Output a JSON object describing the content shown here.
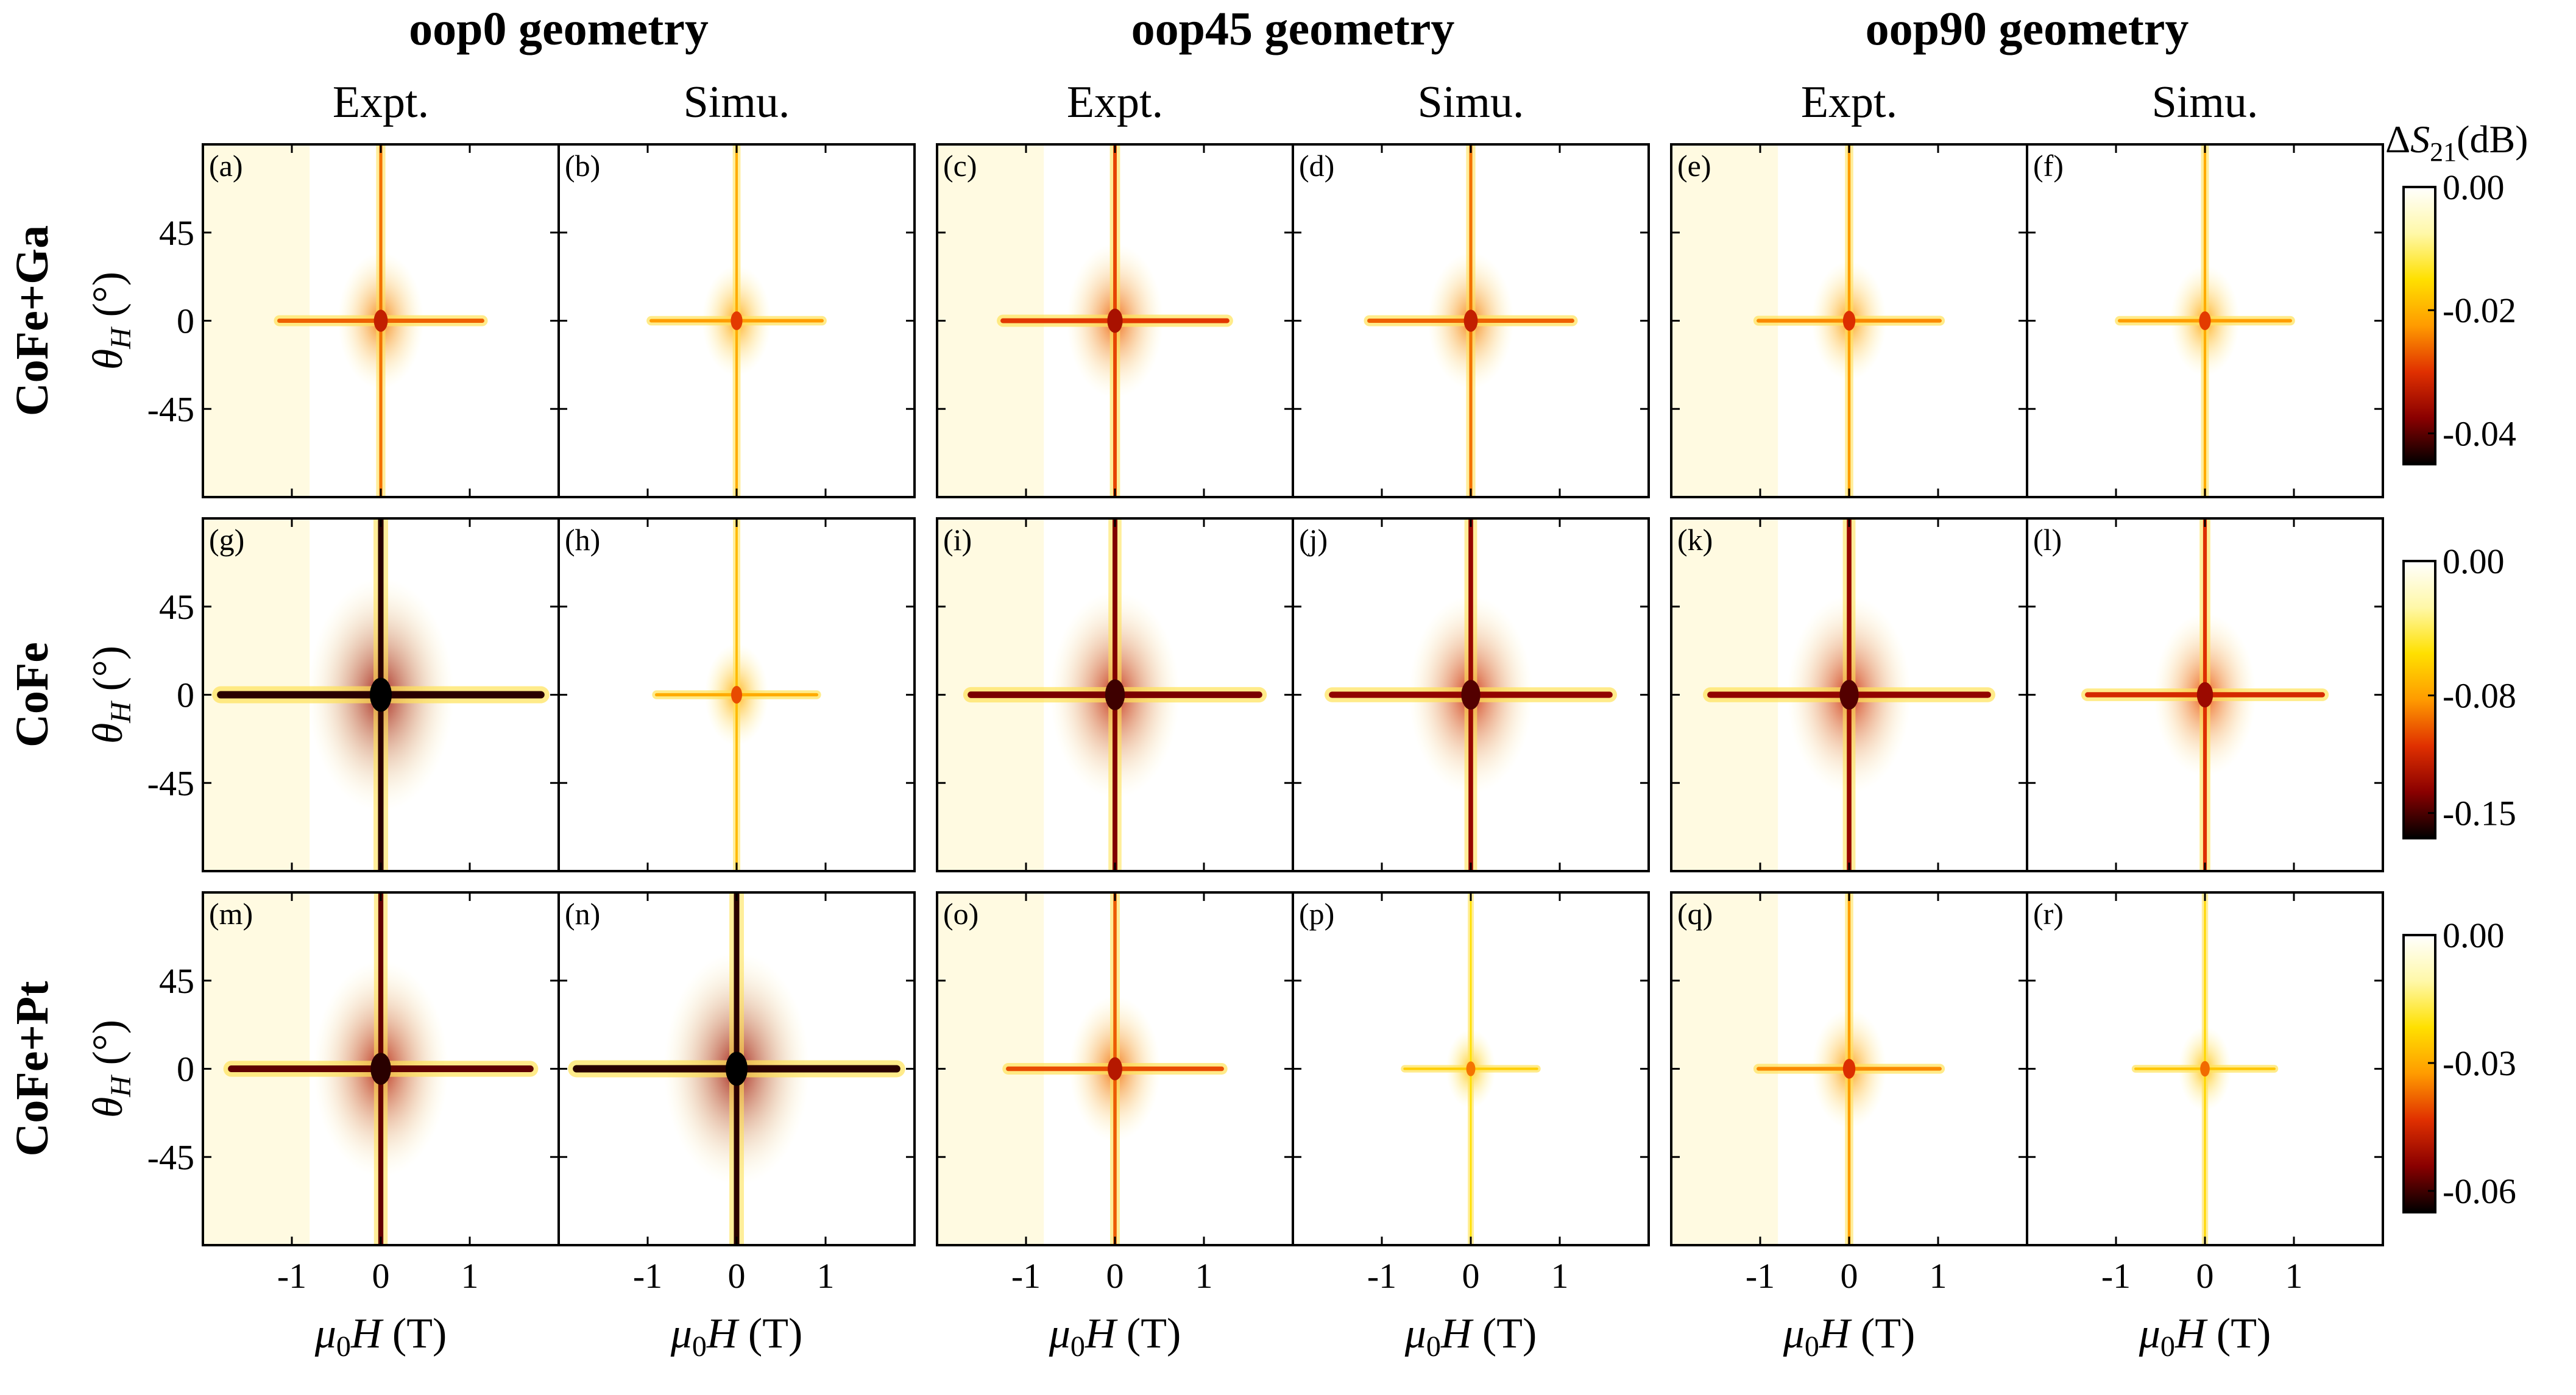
{
  "chart_data": {
    "type": "heatmap",
    "geometries": [
      {
        "title": "oop0 geometry"
      },
      {
        "title": "oop45 geometry"
      },
      {
        "title": "oop90 geometry"
      }
    ],
    "column_labels": [
      "Expt.",
      "Simu."
    ],
    "rows": [
      {
        "label": "CoFe+Ga",
        "cbar_ticks": [
          "0.00",
          "-0.02",
          "-0.04"
        ],
        "cbar_range": [
          -0.045,
          0.0
        ]
      },
      {
        "label": "CoFe",
        "cbar_ticks": [
          "0.00",
          "-0.08",
          "-0.15"
        ],
        "cbar_range": [
          -0.165,
          0.0
        ]
      },
      {
        "label": "CoFe+Pt",
        "cbar_ticks": [
          "0.00",
          "-0.03",
          "-0.06"
        ],
        "cbar_range": [
          -0.065,
          0.0
        ]
      }
    ],
    "panel_labels": [
      [
        "(a)",
        "(b)",
        "(c)",
        "(d)",
        "(e)",
        "(f)"
      ],
      [
        "(g)",
        "(h)",
        "(i)",
        "(j)",
        "(k)",
        "(l)"
      ],
      [
        "(m)",
        "(n)",
        "(o)",
        "(p)",
        "(q)",
        "(r)"
      ]
    ],
    "x_axis": {
      "label_main": "μ",
      "label_sub": "0",
      "label_rest": "H (T)",
      "ticks": [
        "-1",
        "0",
        "1"
      ],
      "tick_values": [
        -1,
        0,
        1
      ],
      "range": [
        -2.0,
        2.0
      ]
    },
    "y_axis": {
      "label_main": "θ",
      "label_sub": "H",
      "label_rest": " (°)",
      "ticks": [
        "45",
        "0",
        "-45"
      ],
      "tick_values": [
        45,
        0,
        -45
      ],
      "range": [
        -90,
        90
      ]
    },
    "colorbar_title": {
      "prefix": "ΔS",
      "sub": "21",
      "suffix": "(dB)"
    },
    "colormap": [
      "#ffffff",
      "#fff8a8",
      "#ffe000",
      "#ff9b00",
      "#e03000",
      "#8a0000",
      "#000000"
    ],
    "intensity": [
      [
        0.45,
        0.3,
        0.55,
        0.45,
        0.35,
        0.3
      ],
      [
        1.0,
        0.25,
        0.85,
        0.8,
        0.8,
        0.6
      ],
      [
        0.9,
        1.0,
        0.5,
        0.12,
        0.35,
        0.15
      ]
    ]
  }
}
